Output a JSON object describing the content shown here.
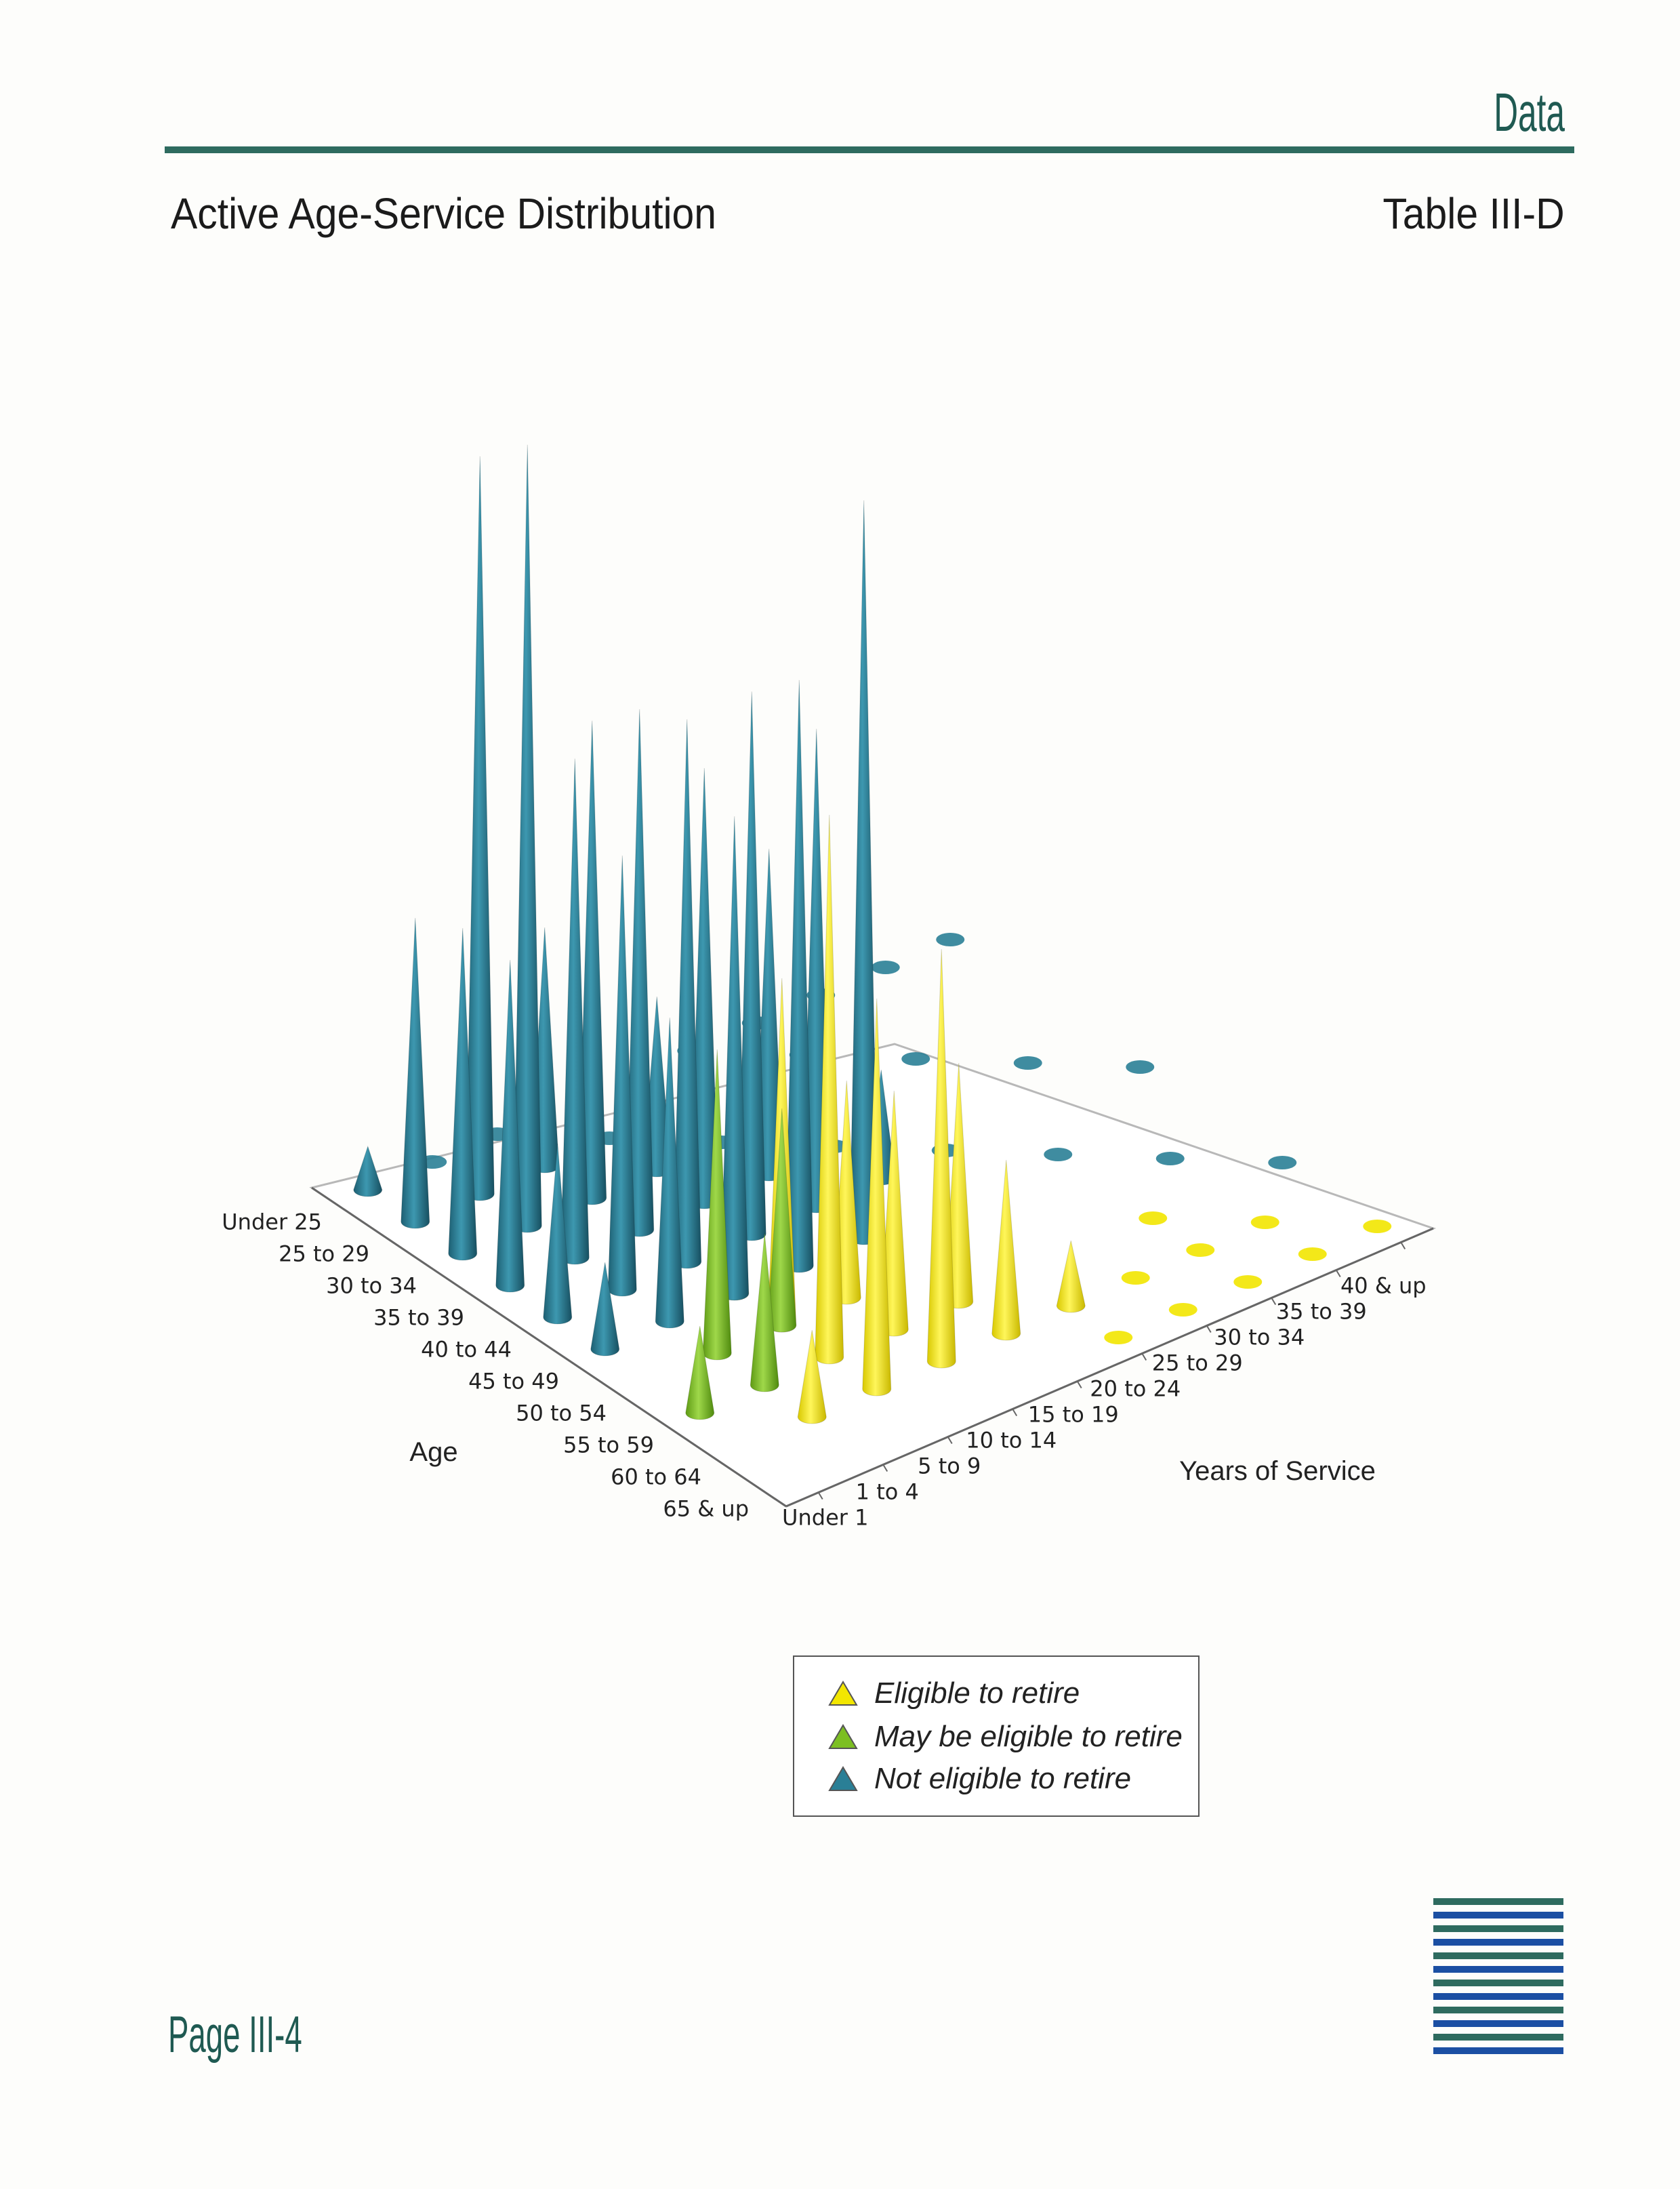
{
  "header": {
    "section": "Data",
    "title": "Active Age-Service Distribution",
    "table_id": "Table III-D"
  },
  "footer": {
    "page": "Page III-4"
  },
  "legend": {
    "items": [
      {
        "label": "Eligible to retire",
        "color": "#f2e600"
      },
      {
        "label": "May be eligible to retire",
        "color": "#7cbf22"
      },
      {
        "label": "Not eligible to retire",
        "color": "#2a7f96"
      }
    ]
  },
  "colors": {
    "eligible": "#f2e600",
    "may_be_eligible": "#7cbf22",
    "not_eligible": "#2a7f96",
    "brand": "#2e6b5f",
    "logo_blue": "#1b4fa3"
  },
  "chart_data": {
    "type": "3d-cone",
    "xlabel": "Years of Service",
    "ylabel": "Age",
    "x_categories": [
      "Under 1",
      "1 to 4",
      "5 to 9",
      "10 to 14",
      "15 to 19",
      "20 to 24",
      "25 to 29",
      "30 to 34",
      "35 to 39",
      "40 & up"
    ],
    "y_categories": [
      "Under 25",
      "25 to 29",
      "30 to 34",
      "35 to 39",
      "40 to 44",
      "45 to 49",
      "50 to 54",
      "55 to 59",
      "60 to 64",
      "65 & up"
    ],
    "legend_position": "bottom",
    "series": [
      {
        "legend_item": 0,
        "points": [
          [
            "1 to 4",
            "60 to 64",
            4
          ],
          [
            "5 to 9",
            "50 to 54",
            16
          ],
          [
            "5 to 9",
            "55 to 59",
            25
          ],
          [
            "5 to 9",
            "60 to 64",
            18
          ],
          [
            "10 to 14",
            "55 to 59",
            11
          ],
          [
            "10 to 14",
            "60 to 64",
            19
          ],
          [
            "15 to 19",
            "60 to 64",
            8
          ],
          [
            "5 to 9",
            "45 to 49",
            14
          ],
          [
            "10 to 14",
            "50 to 54",
            10
          ],
          [
            "15 to 19",
            "55 to 59",
            11
          ],
          [
            "20 to 24",
            "60 to 64",
            3
          ],
          [
            "65 & up",
            "Under 1",
            0
          ],
          [
            "20 to 24",
            "65 & up",
            0
          ],
          [
            "25 to 29",
            "65 & up",
            0
          ],
          [
            "30 to 34",
            "65 & up",
            0
          ],
          [
            "35 to 39",
            "65 & up",
            0
          ],
          [
            "40 & up",
            "65 & up",
            0
          ],
          [
            "25 to 29",
            "60 to 64",
            0
          ],
          [
            "30 to 34",
            "60 to 64",
            0
          ],
          [
            "35 to 39",
            "60 to 64",
            0
          ],
          [
            "30 to 34",
            "55 to 59",
            0
          ]
        ]
      },
      {
        "legend_item": 1,
        "points": [
          [
            "Under 1",
            "55 to 59",
            4
          ],
          [
            "1 to 4",
            "55 to 59",
            7
          ],
          [
            "1 to 4",
            "50 to 54",
            14
          ],
          [
            "5 to 9",
            "50 to 54",
            10
          ]
        ]
      },
      {
        "legend_item": 2,
        "points": [
          [
            "Under 1",
            "Under 25",
            2
          ],
          [
            "Under 1",
            "25 to 29",
            14
          ],
          [
            "Under 1",
            "30 to 34",
            15
          ],
          [
            "Under 1",
            "35 to 39",
            15
          ],
          [
            "Under 1",
            "40 to 44",
            8
          ],
          [
            "Under 1",
            "45 to 49",
            4
          ],
          [
            "1 to 4",
            "Under 25",
            0
          ],
          [
            "1 to 4",
            "25 to 29",
            34
          ],
          [
            "1 to 4",
            "30 to 34",
            36
          ],
          [
            "1 to 4",
            "35 to 39",
            23
          ],
          [
            "1 to 4",
            "40 to 44",
            20
          ],
          [
            "1 to 4",
            "45 to 49",
            14
          ],
          [
            "5 to 9",
            "Under 25",
            0
          ],
          [
            "5 to 9",
            "25 to 29",
            11
          ],
          [
            "5 to 9",
            "30 to 34",
            22
          ],
          [
            "5 to 9",
            "35 to 39",
            24
          ],
          [
            "5 to 9",
            "40 to 44",
            25
          ],
          [
            "5 to 9",
            "45 to 49",
            22
          ],
          [
            "10 to 14",
            "25 to 29",
            0
          ],
          [
            "10 to 14",
            "30 to 34",
            8
          ],
          [
            "10 to 14",
            "35 to 39",
            20
          ],
          [
            "10 to 14",
            "40 to 44",
            25
          ],
          [
            "10 to 14",
            "45 to 49",
            27
          ],
          [
            "15 to 19",
            "30 to 34",
            0
          ],
          [
            "15 to 19",
            "35 to 39",
            15
          ],
          [
            "15 to 19",
            "40 to 44",
            22
          ],
          [
            "15 to 19",
            "45 to 49",
            34
          ],
          [
            "20 to 24",
            "35 to 39",
            0
          ],
          [
            "20 to 24",
            "40 to 44",
            5
          ],
          [
            "25 to 29",
            "40 to 44",
            0
          ],
          [
            "30 to 34",
            "45 to 49",
            0
          ],
          [
            "35 to 39",
            "50 to 54",
            0
          ],
          [
            "40 & up",
            "55 to 59",
            0
          ],
          [
            "20 to 24",
            "Under 25",
            0
          ],
          [
            "25 to 29",
            "Under 25",
            0
          ],
          [
            "30 to 34",
            "Under 25",
            0
          ],
          [
            "35 to 39",
            "Under 25",
            0
          ],
          [
            "40 & up",
            "Under 25",
            0
          ],
          [
            "25 to 29",
            "25 to 29",
            0
          ],
          [
            "30 to 34",
            "30 to 34",
            0
          ],
          [
            "35 to 39",
            "35 to 39",
            0
          ],
          [
            "40 & up",
            "40 to 44",
            0
          ]
        ]
      }
    ]
  }
}
